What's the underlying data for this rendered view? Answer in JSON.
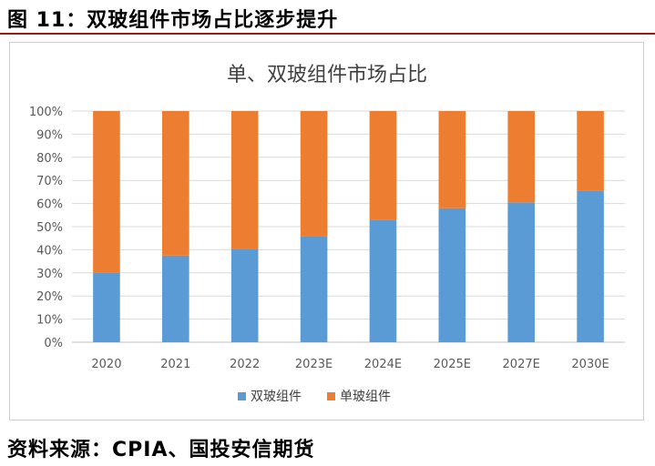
{
  "figure_title": "图 11：双玻组件市场占比逐步提升",
  "source": "资料来源：CPIA、国投安信期货",
  "chart_data": {
    "type": "bar",
    "stacked": true,
    "title": "单、双玻组件市场占比",
    "xlabel": "",
    "ylabel": "",
    "ylim": [
      0,
      100
    ],
    "y_ticks": [
      "0%",
      "10%",
      "20%",
      "30%",
      "40%",
      "50%",
      "60%",
      "70%",
      "80%",
      "90%",
      "100%"
    ],
    "categories": [
      "2020",
      "2021",
      "2022",
      "2023E",
      "2024E",
      "2025E",
      "2027E",
      "2030E"
    ],
    "series": [
      {
        "name": "双玻组件",
        "color": "#5B9BD5",
        "values": [
          30,
          37.5,
          40.5,
          46,
          53,
          58,
          60.5,
          65.5
        ]
      },
      {
        "name": "单玻组件",
        "color": "#ED7D31",
        "values": [
          70,
          62.5,
          59.5,
          54,
          47,
          42,
          39.5,
          34.5
        ]
      }
    ],
    "legend_position": "bottom",
    "grid": true
  }
}
